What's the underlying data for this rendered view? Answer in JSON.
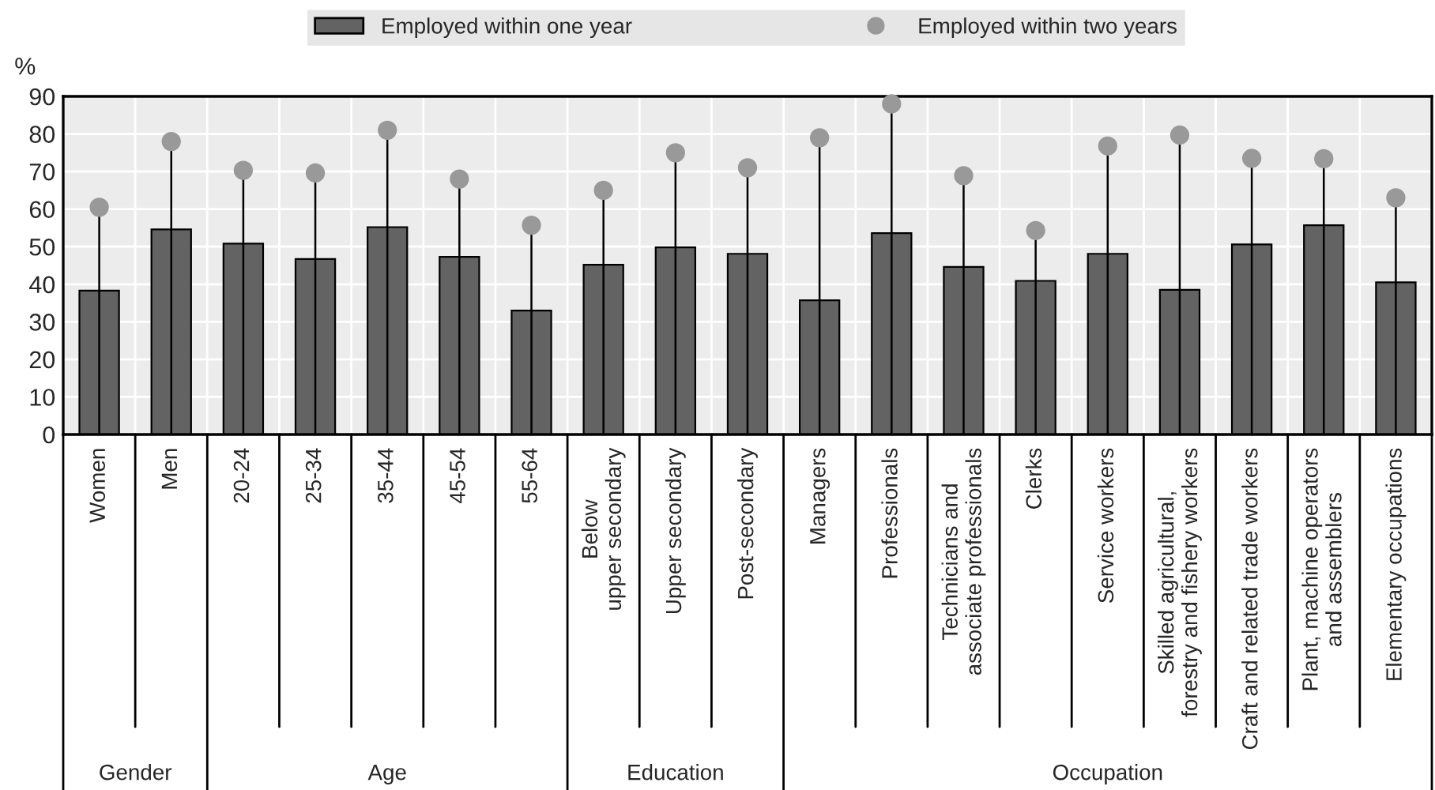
{
  "chart_data": {
    "type": "bar",
    "ylabel": "%",
    "categories": [
      "Women",
      "Men",
      "20-24",
      "25-34",
      "35-44",
      "45-54",
      "55-64",
      "Below\nupper secondary",
      "Upper secondary",
      "Post-secondary",
      "Managers",
      "Professionals",
      "Technicians and\nassociate professionals",
      "Clerks",
      "Service workers",
      "Skilled agricultural,\nforestry and fishery workers",
      "Craft and related trade workers",
      "Plant, machine operators\nand assemblers",
      "Elementary occupations"
    ],
    "series": [
      {
        "name": "Employed within one year",
        "color": "#636363",
        "values": [
          38.3,
          54.6,
          50.8,
          46.7,
          55.2,
          47.3,
          33,
          45.2,
          49.8,
          48.1,
          35.7,
          53.6,
          44.6,
          40.9,
          48.1,
          38.5,
          50.6,
          55.7,
          40.5
        ]
      },
      {
        "name": "Employed within two years",
        "type": "scatter",
        "color": "#999999",
        "values": [
          60.5,
          78,
          70.3,
          69.6,
          81,
          68,
          55.7,
          65,
          75,
          71,
          79,
          88,
          68.9,
          54.3,
          76.8,
          79.7,
          73.5,
          73.4,
          63
        ]
      }
    ],
    "annotations": [
      "Gender",
      "Age",
      "Education",
      "Occupation"
    ],
    "ylim": [
      0,
      90
    ],
    "yticks": [
      0,
      10,
      20,
      30,
      40,
      50,
      60,
      70,
      80,
      90
    ],
    "grid": true,
    "legend": "top",
    "marker": "circle"
  }
}
